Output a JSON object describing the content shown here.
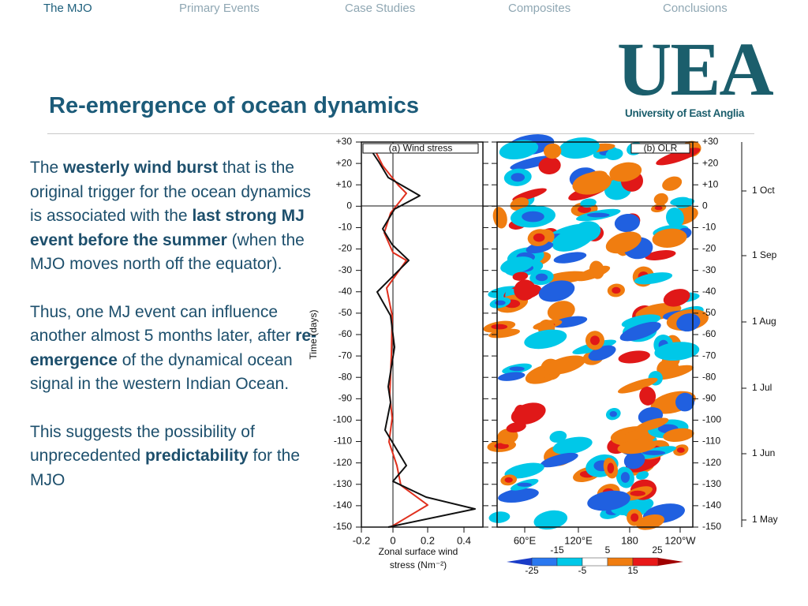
{
  "nav": [
    "The MJO",
    "Primary Events",
    "Case Studies",
    "Composites",
    "Conclusions"
  ],
  "logo": {
    "mark": "UEA",
    "name": "University of East Anglia"
  },
  "title": "Re-emergence of ocean dynamics",
  "paragraphs": [
    [
      {
        "text": "The "
      },
      {
        "text": "westerly wind burst",
        "bold": true
      },
      {
        "text": " that is the original trigger for the ocean dynamics is associated with the "
      },
      {
        "text": "last strong MJ event before the summer",
        "bold": true
      },
      {
        "text": " (when the MJO moves north off the equator)."
      }
    ],
    [
      {
        "text": "Thus, one MJ event can influence another almost 5 months later, after "
      },
      {
        "text": "re-emergence",
        "bold": true
      },
      {
        "text": " of the dynamical ocean signal in the western Indian Ocean."
      }
    ],
    [
      {
        "text": "This suggests the possibility of unprecedented "
      },
      {
        "text": "predictability",
        "bold": true
      },
      {
        "text": " for the MJO"
      }
    ]
  ],
  "figure": {
    "panel_a_label": "(a) Wind stress",
    "panel_b_label": "(b) OLR",
    "y_axis_label": "Time (days)",
    "y_ticks": [
      "+30",
      "+20",
      "+10",
      "0",
      "-10",
      "-20",
      "-30",
      "-40",
      "-50",
      "-60",
      "-70",
      "-80",
      "-90",
      "-100",
      "-110",
      "-120",
      "-130",
      "-140",
      "-150"
    ],
    "x_ticks_a": [
      "-0.2",
      "0",
      "0.2",
      "0.4"
    ],
    "x_label_a": [
      "Zonal surface wind",
      "stress (Nm⁻²)"
    ],
    "x_ticks_b": [
      "60°E",
      "120°E",
      "180",
      "120°W"
    ],
    "date_ticks": [
      "1 Oct",
      "1 Sep",
      "1 Aug",
      "1 Jul",
      "1 Jun",
      "1 May"
    ],
    "colorbar_top": [
      "-15",
      "5",
      "25"
    ],
    "colorbar_bottom": [
      "-25",
      "-5",
      "15"
    ]
  }
}
